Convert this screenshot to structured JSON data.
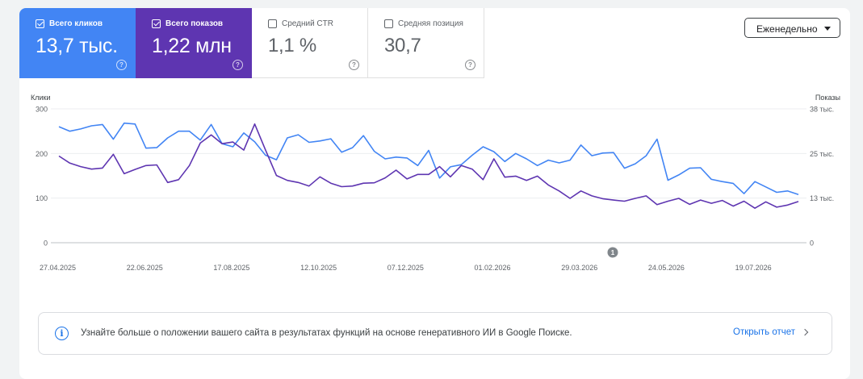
{
  "metrics": [
    {
      "label": "Всего кликов",
      "value": "13,7 тыс.",
      "checked": true
    },
    {
      "label": "Всего показов",
      "value": "1,22 млн",
      "checked": true
    },
    {
      "label": "Средний CTR",
      "value": "1,1 %",
      "checked": false
    },
    {
      "label": "Средняя позиция",
      "value": "30,7",
      "checked": false
    }
  ],
  "help_glyph": "?",
  "period_select": {
    "value": "Еженедельно",
    "icon": "caret-down-icon"
  },
  "colors": {
    "clicks": "#4285f4",
    "impressions": "#5e35b1",
    "link": "#1a73e8"
  },
  "chart_data": {
    "type": "line",
    "y_left": {
      "label": "Клики",
      "ticks": [
        "300",
        "200",
        "100",
        "0"
      ],
      "range": [
        0,
        300
      ]
    },
    "y_right": {
      "label": "Показы",
      "ticks": [
        "38 тыс.",
        "25 тыс.",
        "13 тыс.",
        "0"
      ],
      "range": [
        0,
        38000
      ]
    },
    "x_tick_labels": [
      "27.04.2025",
      "22.06.2025",
      "17.08.2025",
      "12.10.2025",
      "07.12.2025",
      "01.02.2026",
      "29.03.2026",
      "24.05.2026",
      "19.07.2026"
    ],
    "annotation": {
      "label": "1",
      "near_tick": "29.03.2026"
    },
    "grid": true,
    "series": [
      {
        "name": "Всего кликов",
        "axis": "left",
        "color": "#4285f4",
        "values": [
          260,
          250,
          255,
          262,
          265,
          232,
          268,
          266,
          212,
          213,
          235,
          250,
          250,
          230,
          265,
          222,
          215,
          246,
          226,
          196,
          186,
          235,
          242,
          225,
          228,
          233,
          203,
          213,
          240,
          205,
          188,
          192,
          190,
          173,
          207,
          145,
          170,
          175,
          196,
          215,
          204,
          182,
          200,
          188,
          173,
          185,
          179,
          185,
          219,
          195,
          201,
          202,
          167,
          177,
          195,
          232,
          140,
          152,
          167,
          168,
          142,
          137,
          133,
          110,
          137,
          125,
          113,
          116,
          108
        ]
      },
      {
        "name": "Всего показов",
        "axis": "right",
        "color": "#5e35b1",
        "values": [
          24600,
          22600,
          21600,
          20900,
          21200,
          25100,
          19600,
          20800,
          21900,
          22100,
          17100,
          17900,
          21900,
          28300,
          30600,
          28100,
          28600,
          26300,
          33700,
          26300,
          19100,
          17700,
          17100,
          16100,
          18700,
          16900,
          15900,
          16100,
          16900,
          17000,
          18400,
          20600,
          18100,
          19400,
          19400,
          21600,
          18700,
          21900,
          20900,
          17900,
          23800,
          18600,
          18900,
          17700,
          18900,
          16400,
          14700,
          12600,
          14700,
          13300,
          12500,
          12100,
          11800,
          12600,
          13300,
          10800,
          11800,
          12600,
          10900,
          12100,
          11200,
          12000,
          10400,
          11800,
          9800,
          11600,
          10100,
          10700,
          11700
        ]
      }
    ]
  },
  "banner": {
    "text": "Узнайте больше о положении вашего сайта в результатах функций на основе генеративного ИИ в Google Поиске.",
    "link": "Открыть отчет"
  }
}
